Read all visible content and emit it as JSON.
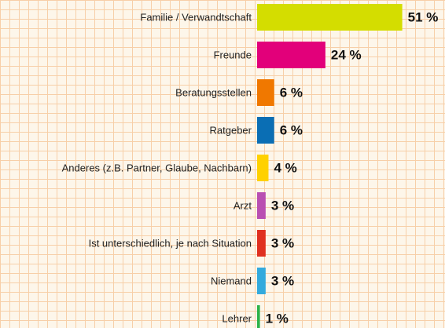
{
  "chart_data": {
    "type": "bar",
    "orientation": "horizontal",
    "categories": [
      "Familie / Verwandtschaft",
      "Freunde",
      "Beratungsstellen",
      "Ratgeber",
      "Anderes (z.B. Partner, Glaube, Nachbarn)",
      "Arzt",
      "Ist unterschiedlich, je nach Situation",
      "Niemand",
      "Lehrer"
    ],
    "values": [
      51,
      24,
      6,
      6,
      4,
      3,
      3,
      3,
      1
    ],
    "value_labels": [
      "51 %",
      "24 %",
      "6 %",
      "6 %",
      "4 %",
      "3 %",
      "3 %",
      "3 %",
      "1 %"
    ],
    "colors": [
      "#d4dd00",
      "#e2007a",
      "#f07800",
      "#0a6eb4",
      "#ffd100",
      "#b94fb2",
      "#e03020",
      "#33aadd",
      "#2db34a"
    ]
  }
}
